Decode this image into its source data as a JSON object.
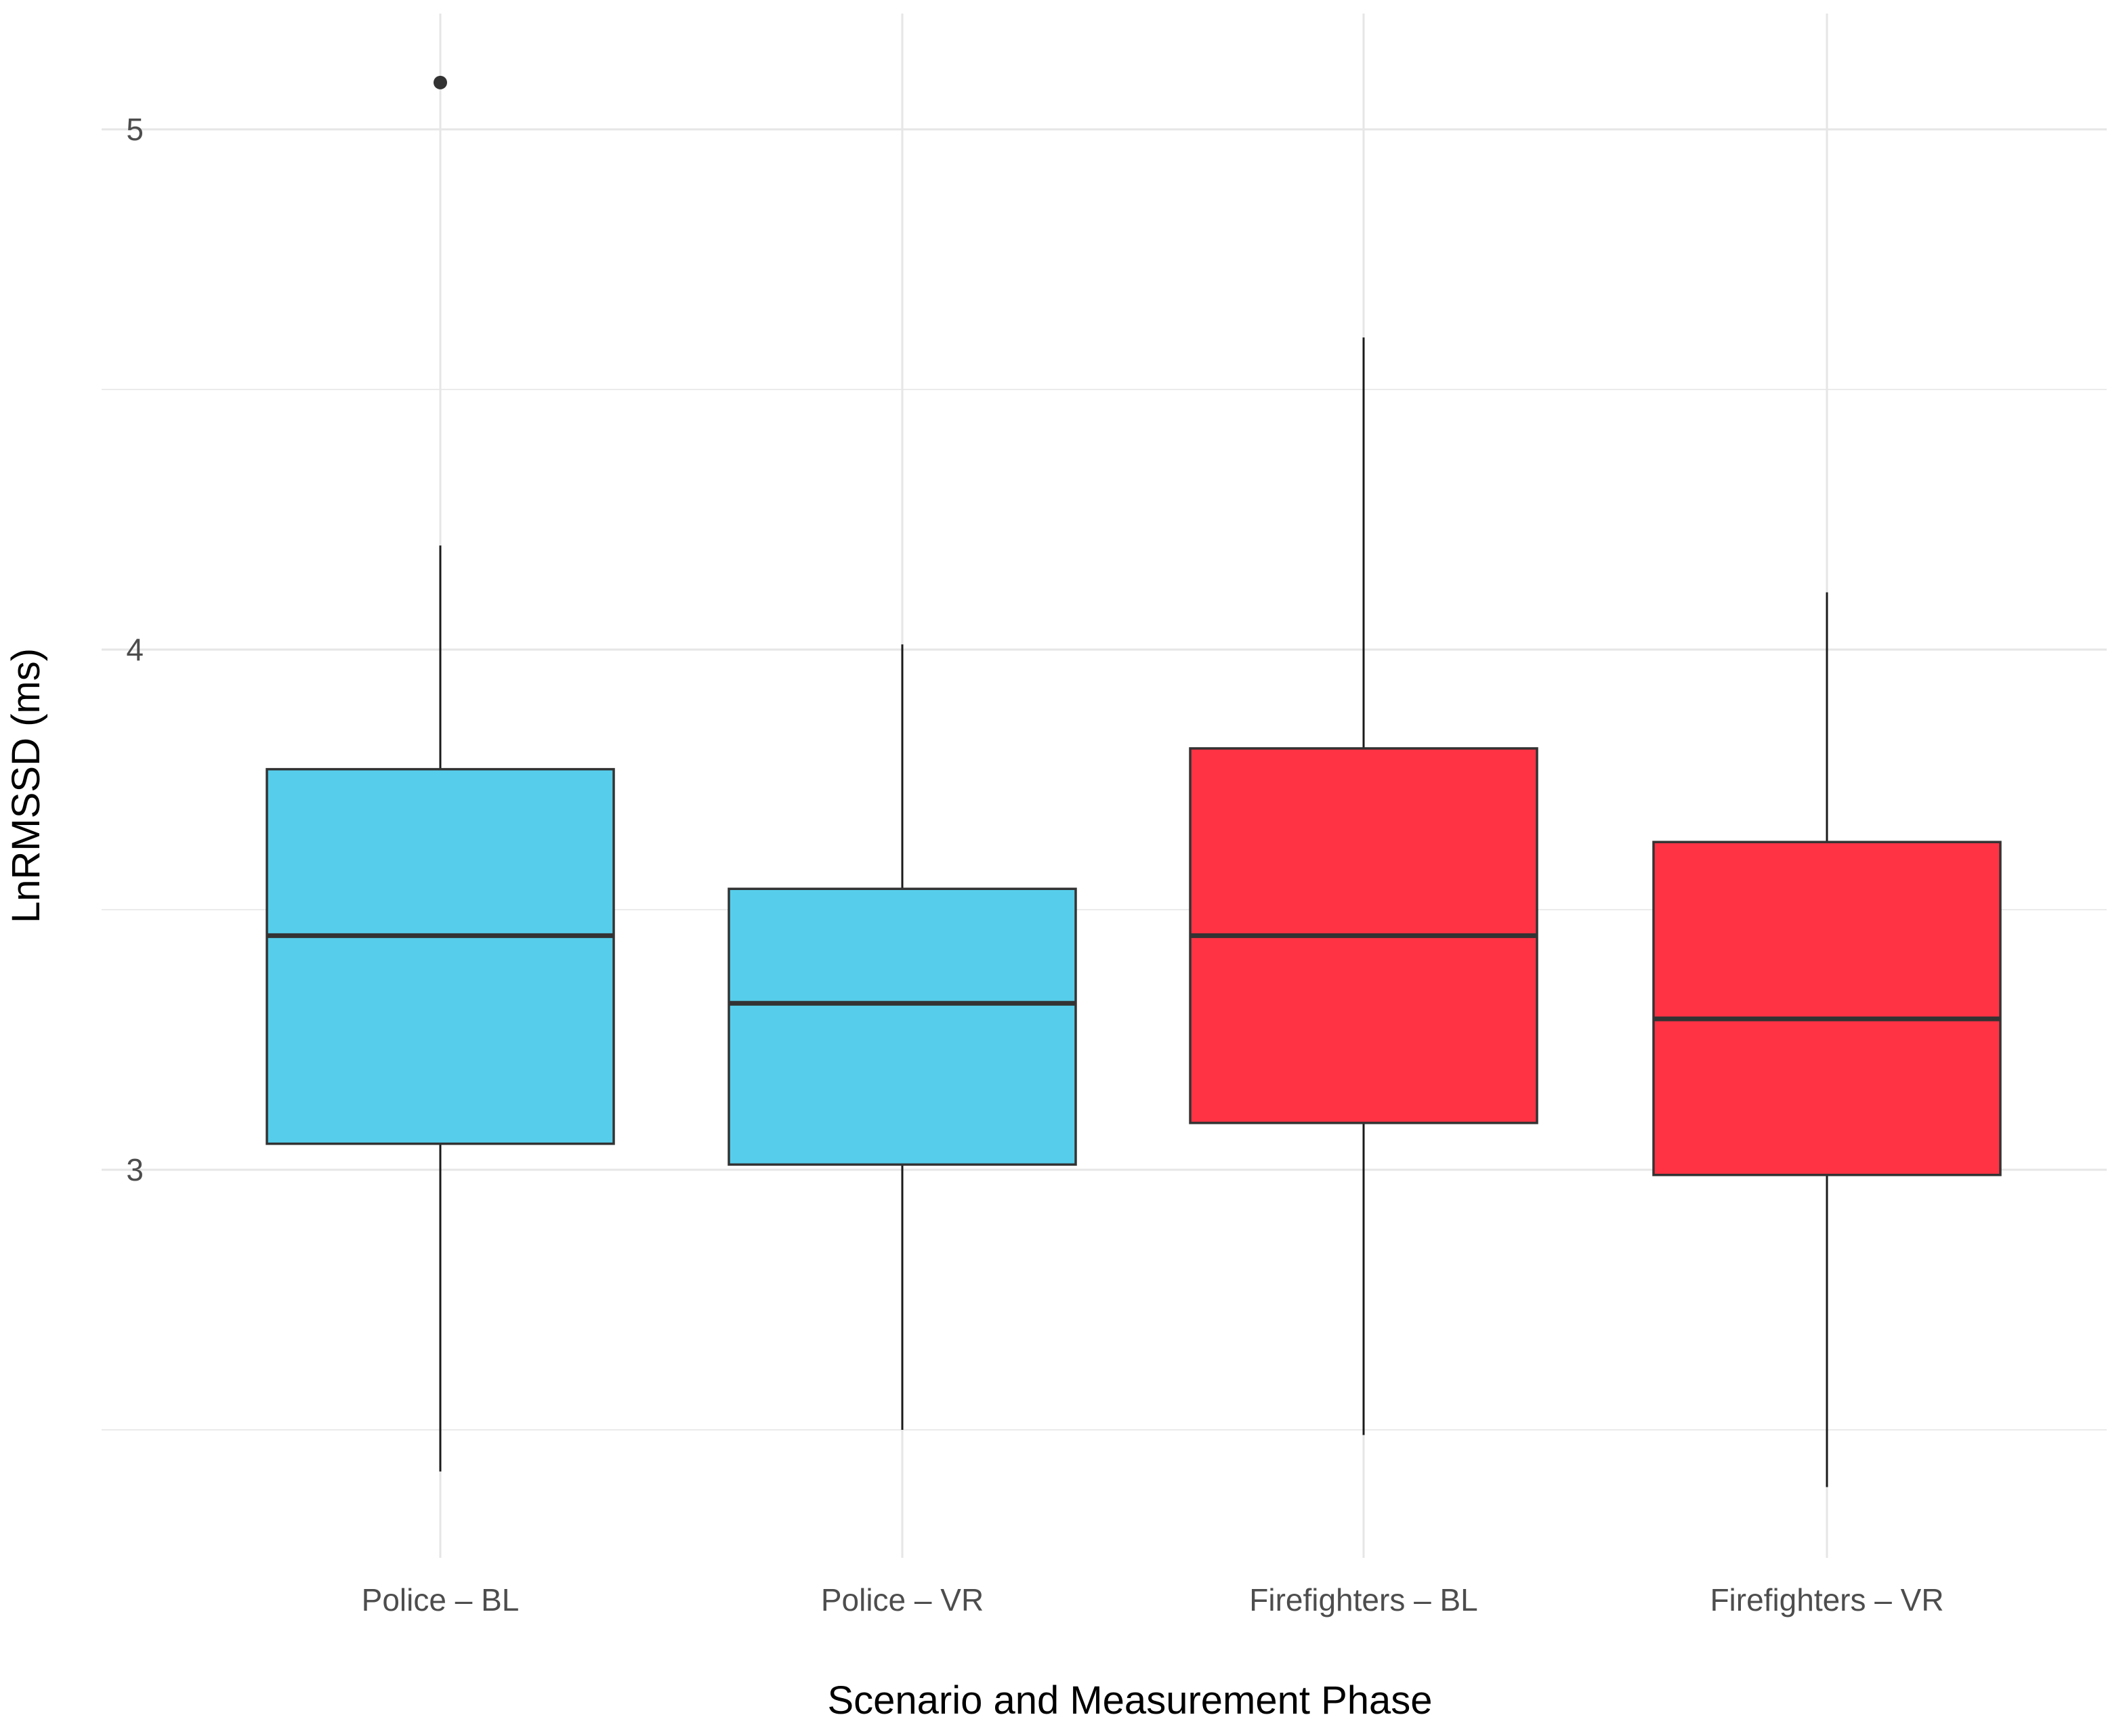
{
  "chart_data": {
    "type": "box",
    "title": "",
    "xlabel": "Scenario and Measurement Phase",
    "ylabel": "LnRMSSD (ms)",
    "ylim": [
      2.25,
      5.25
    ],
    "yticks": [
      3,
      4,
      5
    ],
    "grid": true,
    "legend": "none",
    "categories": [
      "Police – BL",
      "Police – VR",
      "Firefighters – BL",
      "Firefighters – VR"
    ],
    "boxes": [
      {
        "category": "Police – BL",
        "min": 2.42,
        "q1": 3.05,
        "median": 3.45,
        "q3": 3.77,
        "max": 4.2,
        "outliers": [
          5.09
        ],
        "color": "#56CEEB"
      },
      {
        "category": "Police – VR",
        "min": 2.5,
        "q1": 3.01,
        "median": 3.32,
        "q3": 3.54,
        "max": 4.01,
        "outliers": [],
        "color": "#56CEEB"
      },
      {
        "category": "Firefighters – BL",
        "min": 2.49,
        "q1": 3.09,
        "median": 3.45,
        "q3": 3.81,
        "max": 4.6,
        "outliers": [],
        "color": "#FF3344"
      },
      {
        "category": "Firefighters – VR",
        "min": 2.39,
        "q1": 2.99,
        "median": 3.29,
        "q3": 3.63,
        "max": 4.11,
        "outliers": [],
        "color": "#FF3344"
      }
    ]
  }
}
